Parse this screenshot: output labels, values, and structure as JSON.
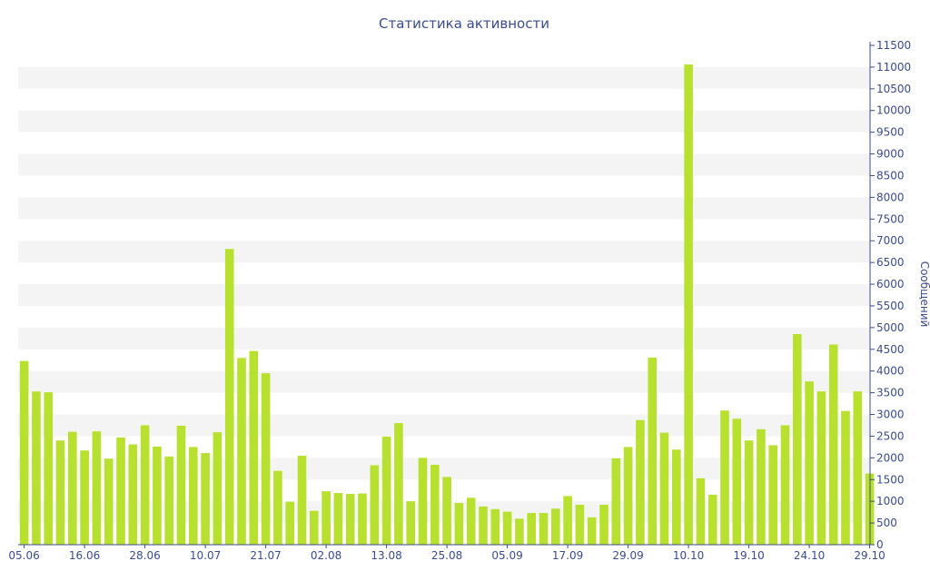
{
  "chart_data": {
    "type": "bar",
    "title": "Статистика активности",
    "ylabel": "Сообщений",
    "xlabel": "",
    "ylim": [
      0,
      11500
    ],
    "y_axis_side": "right",
    "grid": "alternating horizontal bands",
    "y_ticks": [
      0,
      500,
      1000,
      1500,
      2000,
      2500,
      3000,
      3500,
      4000,
      4500,
      5000,
      5500,
      6000,
      6500,
      7000,
      7500,
      8000,
      8500,
      9000,
      9500,
      10000,
      10500,
      11000,
      11500
    ],
    "x_tick_labels": [
      {
        "label": "05.06",
        "index": 0
      },
      {
        "label": "16.06",
        "index": 5
      },
      {
        "label": "28.06",
        "index": 10
      },
      {
        "label": "10.07",
        "index": 15
      },
      {
        "label": "21.07",
        "index": 20
      },
      {
        "label": "02.08",
        "index": 25
      },
      {
        "label": "13.08",
        "index": 30
      },
      {
        "label": "25.08",
        "index": 35
      },
      {
        "label": "05.09",
        "index": 40
      },
      {
        "label": "17.09",
        "index": 45
      },
      {
        "label": "29.09",
        "index": 50
      },
      {
        "label": "10.10",
        "index": 55
      },
      {
        "label": "19.10",
        "index": 60
      },
      {
        "label": "24.10",
        "index": 65
      },
      {
        "label": "29.10",
        "index": 70
      }
    ],
    "bar_color": "#b8e02e",
    "values": [
      4230,
      3530,
      3510,
      2400,
      2600,
      2170,
      2610,
      1980,
      2470,
      2310,
      2750,
      2260,
      2030,
      2740,
      2250,
      2110,
      2590,
      6810,
      4300,
      4460,
      3950,
      1700,
      990,
      2050,
      780,
      1230,
      1190,
      1170,
      1180,
      1830,
      2490,
      2800,
      1000,
      2000,
      1840,
      1560,
      960,
      1080,
      880,
      820,
      760,
      600,
      730,
      730,
      830,
      1120,
      920,
      630,
      920,
      1990,
      2250,
      2870,
      4310,
      2580,
      2190,
      11060,
      1530,
      1150,
      3090,
      2900,
      2400,
      2660,
      2290,
      2750,
      4850,
      3760,
      3530,
      4610,
      3080,
      3530,
      1640
    ]
  }
}
